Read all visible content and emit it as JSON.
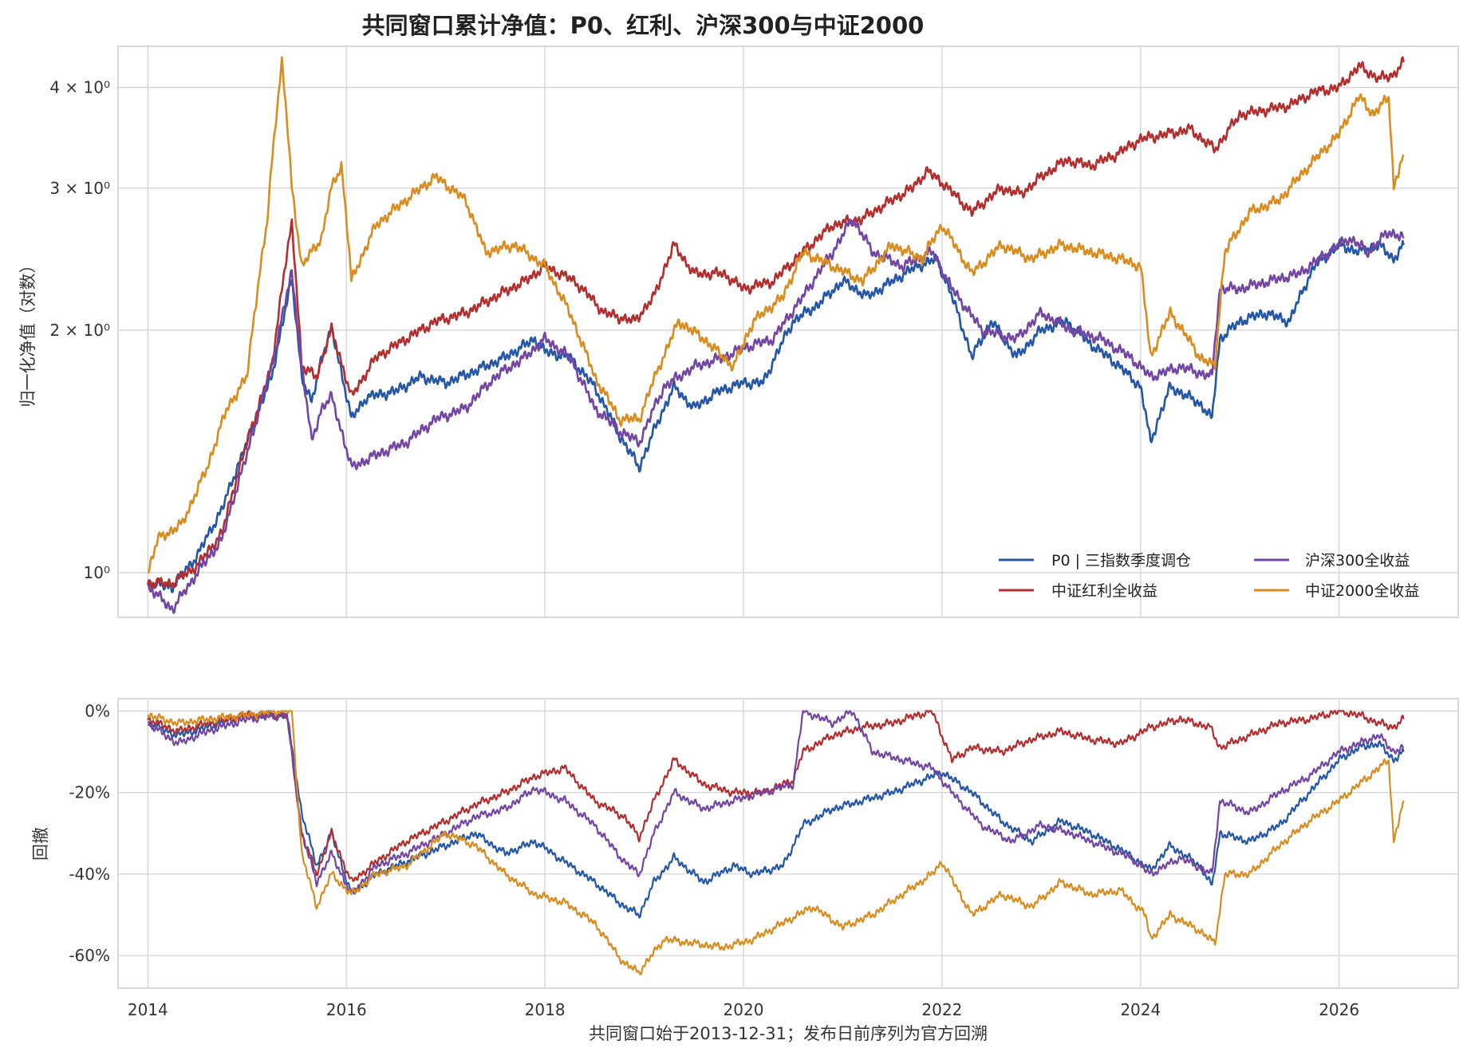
{
  "chart_data": [
    {
      "type": "line",
      "title": "共同窗口累计净值：P0、红利、沪深300与中证2000",
      "ylabel": "归一化净值（对数）",
      "xlabel": "",
      "y_scale": "log",
      "xlim": [
        2013.7,
        2027.2
      ],
      "ylim": [
        0.88,
        4.5
      ],
      "yticks": [
        1,
        2,
        3,
        4
      ],
      "ytick_labels": [
        "10⁰",
        "2 × 10⁰",
        "3 × 10⁰",
        "4 × 10⁰"
      ],
      "xticks": [
        2014,
        2016,
        2018,
        2020,
        2022,
        2024,
        2026
      ],
      "grid": true,
      "legend": "bottom-right",
      "legend_columns": 2,
      "series": [
        {
          "name": "P0 | 三指数季度调仓",
          "color": "#2557a7",
          "x": [
            2014.0,
            2014.25,
            2014.5,
            2014.75,
            2015.0,
            2015.25,
            2015.45,
            2015.55,
            2015.65,
            2015.75,
            2015.85,
            2016.05,
            2016.2,
            2016.5,
            2016.75,
            2017.0,
            2017.3,
            2017.6,
            2017.9,
            2018.0,
            2018.25,
            2018.5,
            2018.75,
            2018.95,
            2019.1,
            2019.3,
            2019.5,
            2019.75,
            2020.0,
            2020.2,
            2020.5,
            2020.75,
            2021.0,
            2021.25,
            2021.5,
            2021.75,
            2021.95,
            2022.1,
            2022.3,
            2022.5,
            2022.75,
            2023.0,
            2023.25,
            2023.5,
            2023.75,
            2024.0,
            2024.1,
            2024.3,
            2024.6,
            2024.72,
            2024.8,
            2025.0,
            2025.25,
            2025.5,
            2025.75,
            2026.0,
            2026.2,
            2026.4,
            2026.55,
            2026.65
          ],
          "values": [
            0.97,
            0.96,
            1.05,
            1.2,
            1.45,
            1.75,
            2.3,
            1.75,
            1.62,
            1.85,
            2.0,
            1.55,
            1.65,
            1.68,
            1.75,
            1.72,
            1.78,
            1.85,
            1.95,
            1.88,
            1.85,
            1.7,
            1.48,
            1.35,
            1.5,
            1.7,
            1.6,
            1.68,
            1.72,
            1.72,
            2.05,
            2.15,
            2.3,
            2.2,
            2.3,
            2.4,
            2.45,
            2.2,
            1.85,
            2.05,
            1.85,
            2.0,
            2.05,
            1.92,
            1.82,
            1.7,
            1.45,
            1.7,
            1.62,
            1.55,
            1.95,
            2.05,
            2.1,
            2.05,
            2.4,
            2.55,
            2.5,
            2.55,
            2.45,
            2.55
          ]
        },
        {
          "name": "中证红利全收益",
          "color": "#b32e2e",
          "x": [
            2014.0,
            2014.25,
            2014.5,
            2014.75,
            2015.0,
            2015.25,
            2015.45,
            2015.55,
            2015.7,
            2015.85,
            2016.05,
            2016.3,
            2016.6,
            2016.9,
            2017.2,
            2017.5,
            2017.8,
            2018.0,
            2018.3,
            2018.6,
            2018.9,
            2019.1,
            2019.3,
            2019.5,
            2019.8,
            2020.0,
            2020.3,
            2020.6,
            2020.9,
            2021.2,
            2021.5,
            2021.7,
            2021.85,
            2022.0,
            2022.3,
            2022.6,
            2022.8,
            2023.0,
            2023.25,
            2023.5,
            2023.75,
            2024.0,
            2024.25,
            2024.5,
            2024.75,
            2025.0,
            2025.25,
            2025.5,
            2025.75,
            2026.0,
            2026.2,
            2026.4,
            2026.55,
            2026.65
          ],
          "values": [
            0.97,
            0.97,
            1.02,
            1.12,
            1.45,
            1.8,
            2.7,
            1.8,
            1.75,
            2.0,
            1.65,
            1.85,
            1.95,
            2.05,
            2.1,
            2.2,
            2.3,
            2.4,
            2.3,
            2.1,
            2.05,
            2.2,
            2.55,
            2.35,
            2.35,
            2.25,
            2.3,
            2.5,
            2.7,
            2.75,
            2.9,
            3.0,
            3.15,
            3.05,
            2.8,
            3.0,
            2.95,
            3.1,
            3.25,
            3.2,
            3.3,
            3.45,
            3.5,
            3.55,
            3.35,
            3.7,
            3.75,
            3.8,
            3.95,
            4.0,
            4.25,
            4.1,
            4.15,
            4.3
          ]
        },
        {
          "name": "沪深300全收益",
          "color": "#7446a3",
          "x": [
            2014.0,
            2014.25,
            2014.5,
            2014.75,
            2015.0,
            2015.25,
            2015.45,
            2015.55,
            2015.65,
            2015.75,
            2015.85,
            2016.05,
            2016.3,
            2016.6,
            2016.9,
            2017.2,
            2017.5,
            2017.8,
            2018.0,
            2018.25,
            2018.5,
            2018.75,
            2018.95,
            2019.2,
            2019.5,
            2019.8,
            2020.0,
            2020.3,
            2020.6,
            2020.9,
            2021.1,
            2021.3,
            2021.6,
            2021.9,
            2022.1,
            2022.4,
            2022.75,
            2023.0,
            2023.3,
            2023.6,
            2023.9,
            2024.1,
            2024.4,
            2024.72,
            2024.8,
            2025.0,
            2025.3,
            2025.6,
            2025.9,
            2026.1,
            2026.3,
            2026.5,
            2026.65
          ],
          "values": [
            0.96,
            0.9,
            1.0,
            1.1,
            1.4,
            1.8,
            2.35,
            1.8,
            1.45,
            1.6,
            1.65,
            1.35,
            1.4,
            1.45,
            1.55,
            1.6,
            1.75,
            1.85,
            1.95,
            1.85,
            1.6,
            1.5,
            1.45,
            1.7,
            1.8,
            1.85,
            1.9,
            1.95,
            2.2,
            2.5,
            2.75,
            2.5,
            2.4,
            2.5,
            2.25,
            2.0,
            1.95,
            2.1,
            2.0,
            1.95,
            1.85,
            1.75,
            1.8,
            1.75,
            2.25,
            2.25,
            2.3,
            2.35,
            2.5,
            2.6,
            2.5,
            2.65,
            2.6
          ]
        },
        {
          "name": "中证2000全收益",
          "color": "#d98c1f",
          "x": [
            2014.0,
            2014.1,
            2014.35,
            2014.6,
            2014.8,
            2015.0,
            2015.2,
            2015.35,
            2015.45,
            2015.55,
            2015.65,
            2015.75,
            2015.85,
            2015.95,
            2016.05,
            2016.3,
            2016.6,
            2016.9,
            2017.2,
            2017.4,
            2017.7,
            2018.0,
            2018.25,
            2018.5,
            2018.75,
            2018.95,
            2019.15,
            2019.35,
            2019.6,
            2019.9,
            2020.1,
            2020.4,
            2020.6,
            2020.9,
            2021.2,
            2021.5,
            2021.8,
            2022.0,
            2022.3,
            2022.6,
            2022.9,
            2023.2,
            2023.5,
            2023.8,
            2024.0,
            2024.1,
            2024.3,
            2024.6,
            2024.75,
            2024.85,
            2025.1,
            2025.4,
            2025.7,
            2026.0,
            2026.2,
            2026.35,
            2026.5,
            2026.55,
            2026.65
          ],
          "values": [
            1.0,
            1.1,
            1.15,
            1.35,
            1.6,
            1.75,
            2.7,
            4.3,
            3.0,
            2.4,
            2.5,
            2.6,
            3.0,
            3.2,
            2.3,
            2.7,
            2.9,
            3.1,
            2.9,
            2.5,
            2.55,
            2.4,
            2.1,
            1.75,
            1.55,
            1.55,
            1.8,
            2.05,
            1.95,
            1.8,
            2.05,
            2.2,
            2.5,
            2.4,
            2.3,
            2.55,
            2.45,
            2.7,
            2.35,
            2.55,
            2.45,
            2.55,
            2.5,
            2.45,
            2.4,
            1.85,
            2.1,
            1.85,
            1.8,
            2.5,
            2.8,
            2.9,
            3.2,
            3.5,
            3.9,
            3.7,
            3.9,
            3.0,
            3.3
          ]
        }
      ]
    },
    {
      "type": "line",
      "title": "",
      "ylabel": "回撤",
      "xlabel": "共同窗口始于2013-12-31；发布日前序列为官方回溯",
      "xlim": [
        2013.7,
        2027.2
      ],
      "ylim": [
        -68,
        3
      ],
      "yticks": [
        0,
        -20,
        -40,
        -60
      ],
      "ytick_labels": [
        "0%",
        "-20%",
        "-40%",
        "-60%"
      ],
      "xticks": [
        2014,
        2016,
        2018,
        2020,
        2022,
        2024,
        2026
      ],
      "xtick_labels": [
        "2014",
        "2016",
        "2018",
        "2020",
        "2022",
        "2024",
        "2026"
      ],
      "grid": true,
      "series": [
        {
          "name": "P0 | 三指数季度调仓",
          "color": "#2557a7",
          "x": [
            2014.0,
            2014.3,
            2014.6,
            2015.0,
            2015.4,
            2015.55,
            2015.7,
            2015.85,
            2016.05,
            2016.3,
            2016.6,
            2017.0,
            2017.3,
            2017.6,
            2017.9,
            2018.2,
            2018.5,
            2018.8,
            2018.95,
            2019.1,
            2019.3,
            2019.6,
            2019.9,
            2020.1,
            2020.4,
            2020.6,
            2020.9,
            2021.2,
            2021.5,
            2021.8,
            2022.0,
            2022.3,
            2022.6,
            2022.9,
            2023.2,
            2023.5,
            2023.8,
            2024.1,
            2024.3,
            2024.6,
            2024.72,
            2024.8,
            2025.1,
            2025.4,
            2025.7,
            2026.0,
            2026.2,
            2026.4,
            2026.55,
            2026.65
          ],
          "values": [
            -3,
            -6,
            -4,
            -1,
            -1,
            -25,
            -38,
            -30,
            -45,
            -40,
            -37,
            -33,
            -30,
            -35,
            -32,
            -37,
            -42,
            -48,
            -50,
            -42,
            -36,
            -42,
            -38,
            -40,
            -38,
            -28,
            -24,
            -22,
            -20,
            -17,
            -15,
            -20,
            -27,
            -32,
            -27,
            -30,
            -34,
            -39,
            -33,
            -38,
            -43,
            -30,
            -32,
            -28,
            -20,
            -12,
            -9,
            -8,
            -12,
            -10
          ]
        },
        {
          "name": "中证红利全收益",
          "color": "#b32e2e",
          "x": [
            2014.0,
            2014.3,
            2014.6,
            2015.0,
            2015.4,
            2015.55,
            2015.7,
            2015.85,
            2016.05,
            2016.3,
            2016.6,
            2017.0,
            2017.3,
            2017.6,
            2017.9,
            2018.2,
            2018.5,
            2018.8,
            2018.95,
            2019.1,
            2019.3,
            2019.6,
            2019.9,
            2020.2,
            2020.5,
            2020.6,
            2020.9,
            2021.2,
            2021.5,
            2021.75,
            2021.9,
            2022.1,
            2022.3,
            2022.6,
            2022.9,
            2023.2,
            2023.5,
            2023.8,
            2024.1,
            2024.4,
            2024.7,
            2024.8,
            2025.1,
            2025.4,
            2025.7,
            2026.0,
            2026.2,
            2026.4,
            2026.55,
            2026.65
          ],
          "values": [
            -2,
            -5,
            -3,
            -1,
            -1,
            -30,
            -40,
            -30,
            -42,
            -37,
            -32,
            -27,
            -23,
            -20,
            -16,
            -14,
            -22,
            -26,
            -31,
            -22,
            -12,
            -18,
            -20,
            -20,
            -17,
            -10,
            -6,
            -4,
            -3,
            -1,
            0,
            -12,
            -9,
            -10,
            -7,
            -5,
            -7,
            -8,
            -4,
            -2,
            -4,
            -9,
            -6,
            -3,
            -2,
            0,
            -1,
            -3,
            -4,
            -2
          ]
        },
        {
          "name": "沪深300全收益",
          "color": "#7446a3",
          "x": [
            2014.0,
            2014.3,
            2014.6,
            2015.0,
            2015.4,
            2015.55,
            2015.7,
            2015.85,
            2016.05,
            2016.3,
            2016.6,
            2017.0,
            2017.3,
            2017.6,
            2017.9,
            2018.2,
            2018.5,
            2018.8,
            2018.95,
            2019.1,
            2019.3,
            2019.6,
            2019.9,
            2020.2,
            2020.5,
            2020.6,
            2020.9,
            2021.1,
            2021.3,
            2021.6,
            2021.9,
            2022.1,
            2022.4,
            2022.7,
            2023.0,
            2023.3,
            2023.6,
            2023.9,
            2024.1,
            2024.4,
            2024.72,
            2024.8,
            2025.1,
            2025.4,
            2025.7,
            2026.0,
            2026.2,
            2026.4,
            2026.55,
            2026.65
          ],
          "values": [
            -3,
            -8,
            -5,
            -2,
            -1,
            -30,
            -42,
            -35,
            -45,
            -38,
            -35,
            -30,
            -26,
            -24,
            -19,
            -22,
            -28,
            -37,
            -40,
            -30,
            -20,
            -24,
            -22,
            -20,
            -18,
            0,
            -3,
            0,
            -10,
            -12,
            -14,
            -20,
            -28,
            -32,
            -28,
            -30,
            -33,
            -36,
            -40,
            -36,
            -40,
            -22,
            -25,
            -20,
            -16,
            -10,
            -8,
            -6,
            -10,
            -9
          ]
        },
        {
          "name": "中证2000全收益",
          "color": "#d98c1f",
          "x": [
            2014.0,
            2014.3,
            2014.6,
            2015.0,
            2015.3,
            2015.45,
            2015.55,
            2015.7,
            2015.85,
            2016.05,
            2016.3,
            2016.6,
            2017.0,
            2017.3,
            2017.6,
            2017.9,
            2018.2,
            2018.5,
            2018.8,
            2018.95,
            2019.2,
            2019.5,
            2019.8,
            2020.1,
            2020.4,
            2020.7,
            2021.0,
            2021.3,
            2021.6,
            2021.9,
            2022.0,
            2022.3,
            2022.6,
            2022.9,
            2023.2,
            2023.5,
            2023.8,
            2024.05,
            2024.1,
            2024.3,
            2024.6,
            2024.75,
            2024.85,
            2025.1,
            2025.4,
            2025.7,
            2026.0,
            2026.2,
            2026.35,
            2026.5,
            2026.55,
            2026.65
          ],
          "values": [
            -1,
            -3,
            -2,
            -1,
            0,
            0,
            -35,
            -48,
            -40,
            -45,
            -40,
            -38,
            -30,
            -33,
            -40,
            -45,
            -47,
            -52,
            -62,
            -64,
            -56,
            -57,
            -58,
            -56,
            -52,
            -48,
            -53,
            -50,
            -45,
            -40,
            -37,
            -50,
            -45,
            -48,
            -42,
            -45,
            -44,
            -50,
            -56,
            -50,
            -54,
            -57,
            -40,
            -40,
            -33,
            -27,
            -22,
            -18,
            -15,
            -12,
            -32,
            -22
          ]
        }
      ]
    }
  ]
}
